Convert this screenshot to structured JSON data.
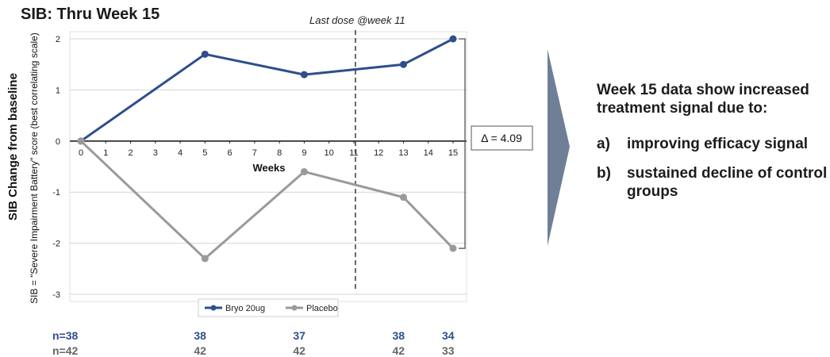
{
  "chart_data": {
    "type": "line",
    "title": "SIB: Thru Week 15",
    "xlabel": "Weeks",
    "ylabel": "SIB Change from baseline",
    "ylabel_sub": "SIB = \"Severe Impairment Battery\" score (best correlating scale)",
    "x_ticks": [
      0,
      1,
      2,
      3,
      4,
      5,
      6,
      7,
      8,
      9,
      10,
      11,
      12,
      13,
      14,
      15
    ],
    "y_ticks": [
      2,
      1,
      0,
      -1,
      -2,
      -3
    ],
    "xlim": [
      0,
      15
    ],
    "ylim": [
      -3,
      2
    ],
    "grid": "horizontal",
    "legend_position": "bottom",
    "series": [
      {
        "name": "Bryo 20ug",
        "color": "#2e4e8c",
        "x": [
          0,
          5,
          9,
          13,
          15
        ],
        "y": [
          0,
          1.7,
          1.3,
          1.5,
          2.0
        ]
      },
      {
        "name": "Placebo",
        "color": "#9a9a9a",
        "x": [
          0,
          5,
          9,
          13,
          15
        ],
        "y": [
          0,
          -2.3,
          -0.6,
          -1.1,
          -2.1
        ]
      }
    ],
    "annotations": {
      "vline_x": 11,
      "vline_label": "Last dose @week 11",
      "delta_label": "Δ = 4.09"
    },
    "n_counts": {
      "bryo": {
        "color": "#2e4e8c",
        "values": [
          {
            "x": 0,
            "label": "n=38"
          },
          {
            "x": 5,
            "label": "38"
          },
          {
            "x": 9,
            "label": "37"
          },
          {
            "x": 13,
            "label": "38"
          },
          {
            "x": 15,
            "label": "34"
          }
        ]
      },
      "placebo": {
        "color": "#666666",
        "values": [
          {
            "x": 0,
            "label": "n=42"
          },
          {
            "x": 5,
            "label": "42"
          },
          {
            "x": 9,
            "label": "42"
          },
          {
            "x": 13,
            "label": "42"
          },
          {
            "x": 15,
            "label": "33"
          }
        ]
      }
    }
  },
  "side_panel": {
    "heading": "Week 15 data show increased treatment signal due to:",
    "items": [
      {
        "label": "a)",
        "text": "improving efficacy signal"
      },
      {
        "label": "b)",
        "text": "sustained decline of control groups"
      }
    ],
    "arrow_color": "#6f7f98"
  }
}
